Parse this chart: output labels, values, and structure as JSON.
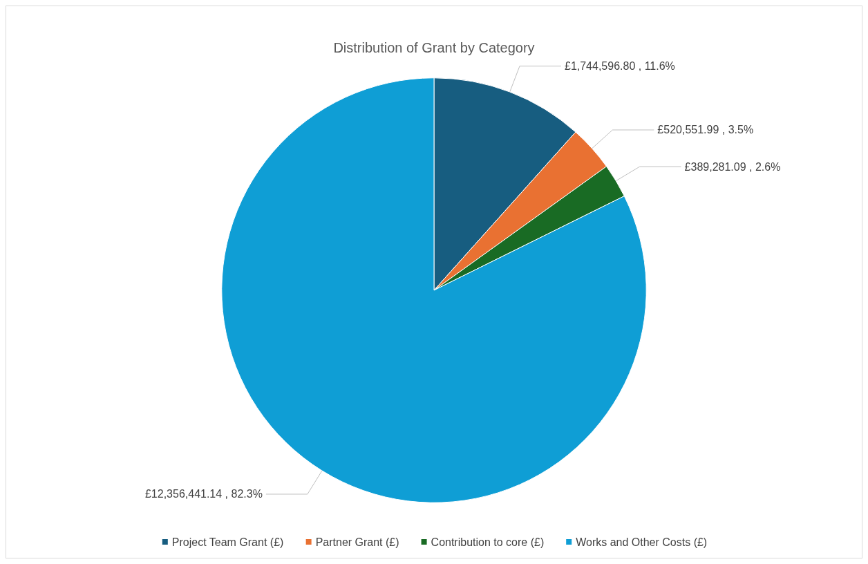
{
  "chart_data": {
    "type": "pie",
    "title": "Distribution of Grant by Category",
    "categories": [
      "Project Team Grant (£)",
      "Partner Grant (£)",
      "Contribution to core (£)",
      "Works and Other Costs (£)"
    ],
    "values": [
      1744596.8,
      520551.99,
      389281.09,
      12356441.14
    ],
    "value_labels": [
      "£1,744,596.80 , 11.6%",
      "£520,551.99 , 3.5%",
      "£389,281.09 , 2.6%",
      "£12,356,441.14 , 82.3%"
    ],
    "colors": [
      "#175d80",
      "#e97132",
      "#196b24",
      "#0f9ed5"
    ],
    "legend": "bottom"
  }
}
